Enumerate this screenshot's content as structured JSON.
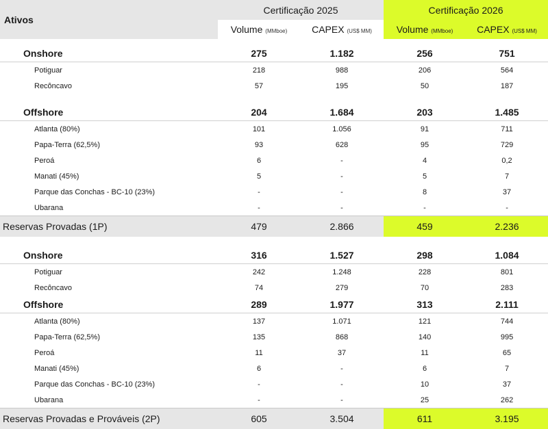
{
  "header": {
    "ativos": "Ativos",
    "cert_2025": "Certificação 2025",
    "cert_2026": "Certificação 2026",
    "volume_label": "Volume",
    "volume_unit": "(MMboe)",
    "capex_label": "CAPEX",
    "capex_unit": "(US$ MM)"
  },
  "p1": {
    "onshore": {
      "name": "Onshore",
      "v25": "275",
      "c25": "1.182",
      "v26": "256",
      "c26": "751",
      "items": [
        {
          "name": "Potiguar",
          "v25": "218",
          "c25": "988",
          "v26": "206",
          "c26": "564"
        },
        {
          "name": "Recôncavo",
          "v25": "57",
          "c25": "195",
          "v26": "50",
          "c26": "187"
        }
      ]
    },
    "offshore": {
      "name": "Offshore",
      "v25": "204",
      "c25": "1.684",
      "v26": "203",
      "c26": "1.485",
      "items": [
        {
          "name": "Atlanta (80%)",
          "v25": "101",
          "c25": "1.056",
          "v26": "91",
          "c26": "711"
        },
        {
          "name": "Papa-Terra (62,5%)",
          "v25": "93",
          "c25": "628",
          "v26": "95",
          "c26": "729"
        },
        {
          "name": "Peroá",
          "v25": "6",
          "c25": "-",
          "v26": "4",
          "c26": "0,2"
        },
        {
          "name": "Manati (45%)",
          "v25": "5",
          "c25": "-",
          "v26": "5",
          "c26": "7"
        },
        {
          "name": "Parque das Conchas - BC-10 (23%)",
          "v25": "-",
          "c25": "-",
          "v26": "8",
          "c26": "37"
        },
        {
          "name": "Ubarana",
          "v25": "-",
          "c25": "-",
          "v26": "-",
          "c26": "-"
        }
      ]
    },
    "total": {
      "name": "Reservas Provadas (1P)",
      "v25": "479",
      "c25": "2.866",
      "v26": "459",
      "c26": "2.236"
    }
  },
  "p2": {
    "onshore": {
      "name": "Onshore",
      "v25": "316",
      "c25": "1.527",
      "v26": "298",
      "c26": "1.084",
      "items": [
        {
          "name": "Potiguar",
          "v25": "242",
          "c25": "1.248",
          "v26": "228",
          "c26": "801"
        },
        {
          "name": "Recôncavo",
          "v25": "74",
          "c25": "279",
          "v26": "70",
          "c26": "283"
        }
      ]
    },
    "offshore": {
      "name": "Offshore",
      "v25": "289",
      "c25": "1.977",
      "v26": "313",
      "c26": "2.111",
      "items": [
        {
          "name": "Atlanta (80%)",
          "v25": "137",
          "c25": "1.071",
          "v26": "121",
          "c26": "744"
        },
        {
          "name": "Papa-Terra (62,5%)",
          "v25": "135",
          "c25": "868",
          "v26": "140",
          "c26": "995"
        },
        {
          "name": "Peroá",
          "v25": "11",
          "c25": "37",
          "v26": "11",
          "c26": "65"
        },
        {
          "name": "Manati (45%)",
          "v25": "6",
          "c25": "-",
          "v26": "6",
          "c26": "7"
        },
        {
          "name": "Parque das Conchas - BC-10 (23%)",
          "v25": "-",
          "c25": "-",
          "v26": "10",
          "c26": "37"
        },
        {
          "name": "Ubarana",
          "v25": "-",
          "c25": "-",
          "v26": "25",
          "c26": "262"
        }
      ]
    },
    "total": {
      "name": "Reservas Provadas e Prováveis (2P)",
      "v25": "605",
      "c25": "3.504",
      "v26": "611",
      "c26": "3.195"
    }
  },
  "colors": {
    "highlight": "#dcfb2a",
    "header_grey": "#e6e6e6"
  }
}
